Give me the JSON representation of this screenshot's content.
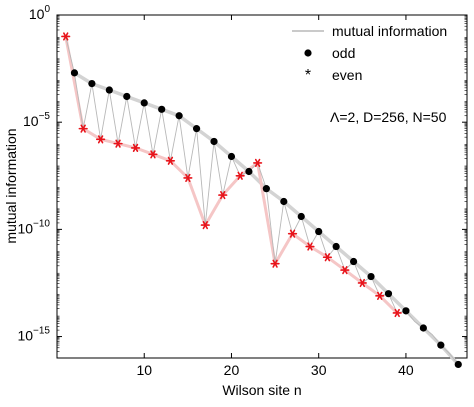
{
  "chart_data": {
    "type": "line",
    "title": "",
    "xlabel": "Wilson site n",
    "ylabel": "mutual information",
    "xlim": [
      0,
      47
    ],
    "ylim_log10": [
      -16,
      0
    ],
    "yscale": "log",
    "grid": false,
    "legend_position": "top-right",
    "annotation": "Λ=2, D=256, N=50",
    "x_ticks": [
      {
        "value": 10,
        "label": "10"
      },
      {
        "value": 20,
        "label": "20"
      },
      {
        "value": 30,
        "label": "30"
      },
      {
        "value": 40,
        "label": "40"
      }
    ],
    "y_ticks": [
      {
        "exp": 0,
        "base": "10",
        "sup": "0"
      },
      {
        "exp": -5,
        "base": "10",
        "sup": "−5"
      },
      {
        "exp": -10,
        "base": "10",
        "sup": "−10"
      },
      {
        "exp": -15,
        "base": "10",
        "sup": "−15"
      }
    ],
    "legend": [
      {
        "key": "mi",
        "label": "mutual information"
      },
      {
        "key": "odd",
        "label": "odd"
      },
      {
        "key": "even",
        "label": "even"
      }
    ],
    "colors": {
      "mutual_information": "#b8b8b8",
      "odd_marker": "#000000",
      "odd_line": "#d3d3d3",
      "even_marker": "#e8141b",
      "even_line": "#f5c6c6",
      "axes": "#000000"
    },
    "series": [
      {
        "name": "mutual information",
        "style": "thin-line",
        "x": [
          1,
          2,
          3,
          4,
          5,
          6,
          7,
          8,
          9,
          10,
          11,
          12,
          13,
          14,
          15,
          16,
          17,
          18,
          19,
          20,
          21,
          22,
          23,
          24,
          25,
          26,
          27,
          28,
          29,
          30,
          31,
          32,
          33,
          34,
          35,
          36,
          37,
          38,
          39,
          40,
          41,
          42,
          43,
          44,
          45,
          46
        ],
        "y_log10": [
          -1.0,
          -2.7,
          -5.3,
          -3.2,
          -5.8,
          -3.5,
          -6.0,
          -3.8,
          -6.2,
          -4.1,
          -6.5,
          -4.4,
          -6.8,
          -4.7,
          -7.6,
          -5.3,
          -9.8,
          -5.9,
          -8.4,
          -6.6,
          -7.5,
          -7.3,
          -6.9,
          -8.1,
          -11.6,
          -8.7,
          -10.2,
          -9.4,
          -10.8,
          -10.1,
          -11.3,
          -10.8,
          -11.9,
          -11.5,
          -12.5,
          -12.2,
          -13.1,
          -13.0,
          -13.9,
          -13.8,
          -14.3,
          -14.6,
          -14.9,
          -15.4,
          -15.8,
          -16.3
        ]
      },
      {
        "name": "odd",
        "style": "dot",
        "x": [
          2,
          4,
          6,
          8,
          10,
          12,
          14,
          16,
          18,
          20,
          22,
          24,
          26,
          28,
          30,
          32,
          34,
          36,
          38,
          40,
          42,
          44,
          46
        ],
        "y_log10": [
          -2.7,
          -3.2,
          -3.5,
          -3.8,
          -4.1,
          -4.4,
          -4.7,
          -5.3,
          -5.9,
          -6.6,
          -7.3,
          -8.1,
          -8.7,
          -9.4,
          -10.1,
          -10.8,
          -11.5,
          -12.2,
          -13.0,
          -13.8,
          -14.6,
          -15.4,
          -16.3
        ]
      },
      {
        "name": "even",
        "style": "star",
        "x": [
          1,
          3,
          5,
          7,
          9,
          11,
          13,
          15,
          17,
          19,
          21,
          23,
          25,
          27,
          29,
          31,
          33,
          35,
          37,
          39
        ],
        "y_log10": [
          -1.0,
          -5.3,
          -5.8,
          -6.0,
          -6.2,
          -6.5,
          -6.8,
          -7.6,
          -9.8,
          -8.4,
          -7.5,
          -6.9,
          -11.6,
          -10.2,
          -10.8,
          -11.3,
          -11.9,
          -12.5,
          -13.1,
          -13.9
        ]
      }
    ]
  }
}
